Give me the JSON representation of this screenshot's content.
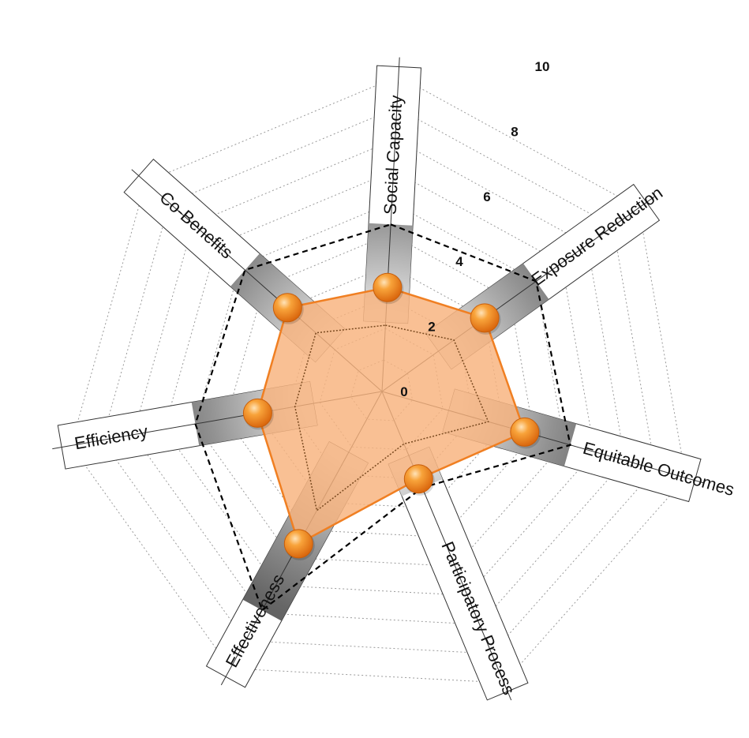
{
  "chart_data": {
    "type": "radar",
    "scale": {
      "min": 0,
      "max": 10,
      "rings": [
        1,
        2,
        3,
        4,
        5,
        6,
        7,
        8,
        9,
        10
      ]
    },
    "tick_labels": [
      "0",
      "2",
      "4",
      "6",
      "8",
      "10"
    ],
    "axes": [
      "Social Capacity",
      "Exposure Reduction",
      "Equitable Outcomes",
      "Participatory Process",
      "Effectiveness",
      "Efficiency",
      "Co-Benefits"
    ],
    "series": [
      {
        "style": "filled-orange",
        "values": [
          3.3,
          4.0,
          4.7,
          3.0,
          5.5,
          4.0,
          4.0
        ]
      },
      {
        "style": "dashed-outline",
        "values": [
          5.3,
          6.0,
          6.2,
          3.3,
          7.9,
          6.0,
          5.8
        ]
      }
    ],
    "colors": {
      "fill": "#f8b27c",
      "line": "#f07f22",
      "marker": "#f28a1e",
      "dashed": "#000000",
      "grid": "#9a9a9a",
      "bar_shade": "#707070"
    }
  }
}
